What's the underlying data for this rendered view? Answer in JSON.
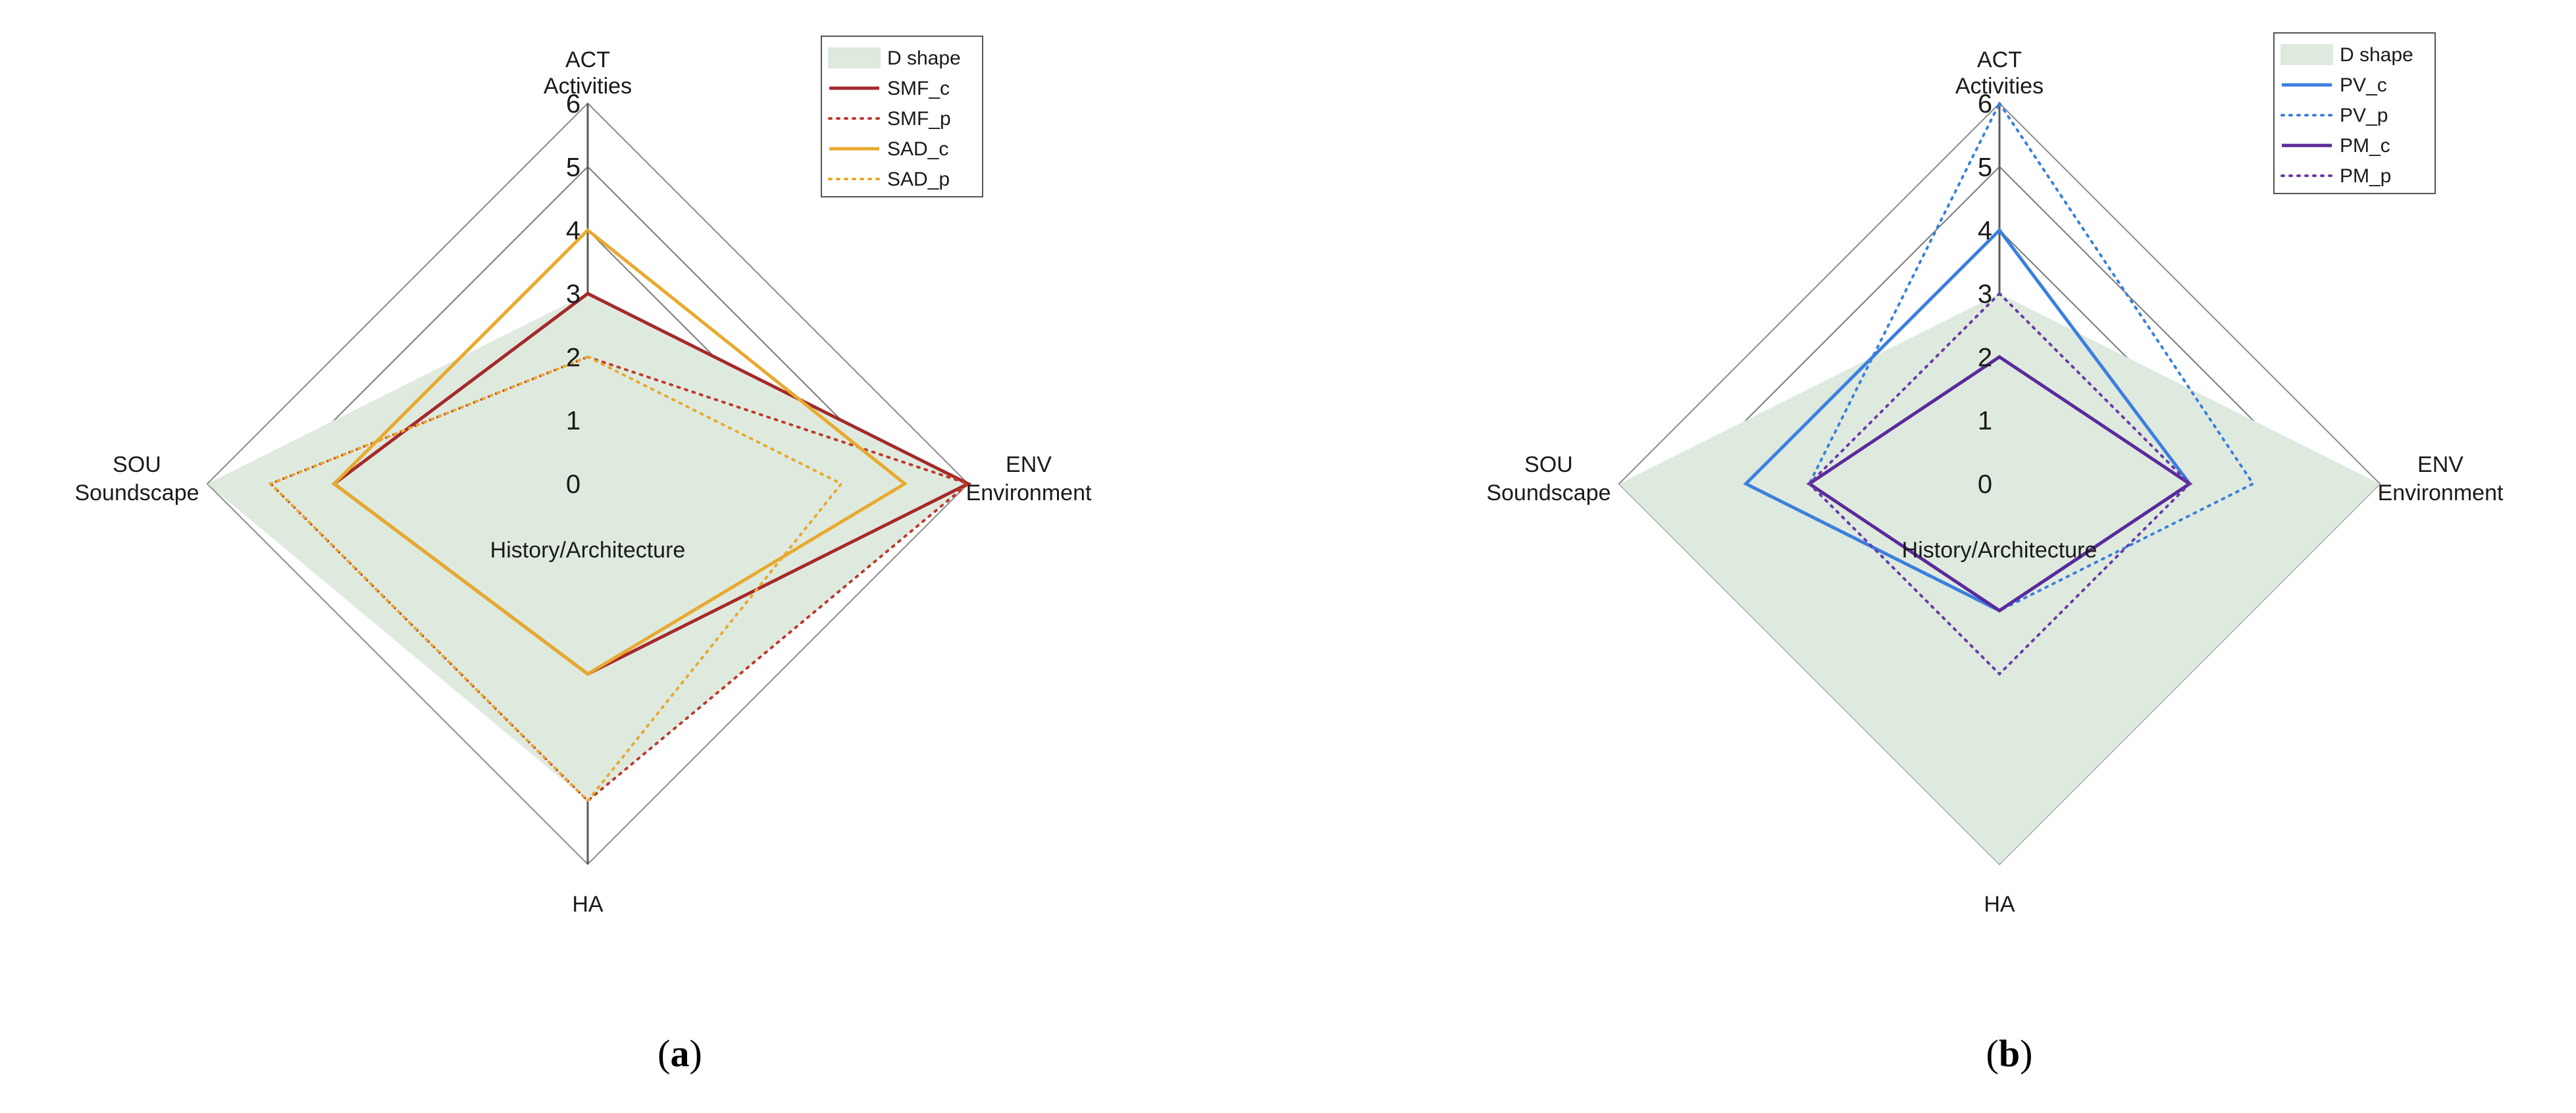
{
  "chart_data": [
    {
      "type": "radar",
      "axes": [
        {
          "code": "ACT",
          "name": "Activities"
        },
        {
          "code": "ENV",
          "name": "Environment"
        },
        {
          "code": "HA",
          "name": "History/Architecture"
        },
        {
          "code": "SOU",
          "name": "Soundscape"
        }
      ],
      "ticks": [
        "0",
        "1",
        "2",
        "3",
        "4",
        "5",
        "6"
      ],
      "rlim": [
        0,
        6
      ],
      "legend_position": "top-right",
      "panel_label": {
        "open": "(",
        "letter": "a",
        "close": ")"
      },
      "series": [
        {
          "name": "D shape",
          "style": "fill",
          "color": "#dfeadf",
          "values": [
            3,
            6,
            5,
            6
          ]
        },
        {
          "name": "SMF_c",
          "style": "solid",
          "color": "#a52a2a",
          "values": [
            3,
            6,
            3,
            4
          ]
        },
        {
          "name": "SMF_p",
          "style": "dotted",
          "color": "#c0392b",
          "values": [
            2,
            6,
            5,
            5
          ]
        },
        {
          "name": "SAD_c",
          "style": "solid",
          "color": "#e8a92e",
          "values": [
            4,
            5,
            3,
            4
          ]
        },
        {
          "name": "SAD_p",
          "style": "dotted",
          "color": "#e8a92e",
          "values": [
            2,
            4,
            5,
            5
          ]
        }
      ]
    },
    {
      "type": "radar",
      "axes": [
        {
          "code": "ACT",
          "name": "Activities"
        },
        {
          "code": "ENV",
          "name": "Environment"
        },
        {
          "code": "HA",
          "name": "History/Architecture"
        },
        {
          "code": "SOU",
          "name": "Soundscape"
        }
      ],
      "ticks": [
        "0",
        "1",
        "2",
        "3",
        "4",
        "5",
        "6"
      ],
      "rlim": [
        0,
        6
      ],
      "legend_position": "top-right",
      "panel_label": {
        "open": "(",
        "letter": "b",
        "close": ")"
      },
      "series": [
        {
          "name": "D shape",
          "style": "fill",
          "color": "#dfeadf",
          "values": [
            3,
            6,
            6,
            6
          ]
        },
        {
          "name": "PV_c",
          "style": "solid",
          "color": "#3a7fe0",
          "values": [
            4,
            3,
            2,
            4
          ]
        },
        {
          "name": "PV_p",
          "style": "dotted",
          "color": "#3a7fe0",
          "values": [
            6,
            4,
            2,
            3
          ]
        },
        {
          "name": "PM_c",
          "style": "solid",
          "color": "#5b2a9a",
          "values": [
            2,
            3,
            2,
            3
          ]
        },
        {
          "name": "PM_p",
          "style": "dotted",
          "color": "#6a3aaa",
          "values": [
            3,
            3,
            3,
            3
          ]
        }
      ]
    }
  ]
}
